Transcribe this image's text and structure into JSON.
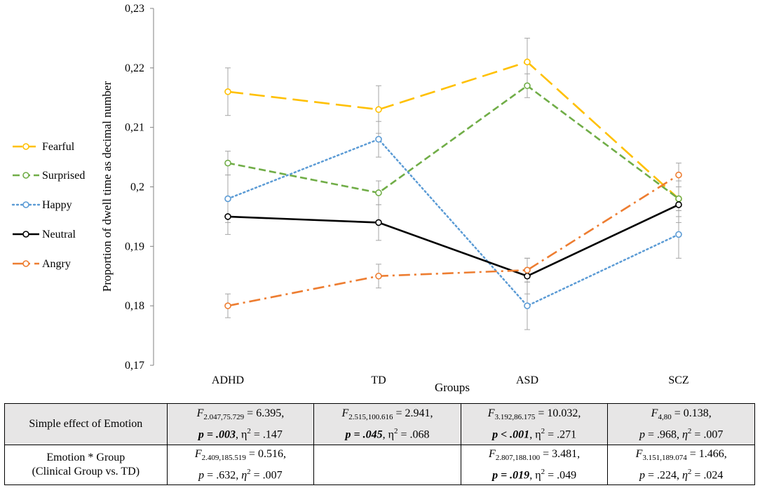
{
  "chart_data": {
    "type": "line",
    "xlabel": "Groups",
    "ylabel": "Proportion of dwell time as decimal number",
    "categories": [
      "ADHD",
      "TD",
      "ASD",
      "SCZ"
    ],
    "ylim": [
      0.17,
      0.23
    ],
    "yticks": [
      "0,17",
      "0,18",
      "0,19",
      "0,2",
      "0,21",
      "0,22",
      "0,23"
    ],
    "ytick_values": [
      0.17,
      0.18,
      0.19,
      0.2,
      0.21,
      0.22,
      0.23
    ],
    "legend_position": "left",
    "series": [
      {
        "name": "Fearful",
        "color": "#FFC000",
        "dash": "long-dash",
        "values": [
          0.216,
          0.213,
          0.221,
          0.198
        ],
        "errors": [
          0.004,
          0.004,
          0.004,
          0.003
        ]
      },
      {
        "name": "Surprised",
        "color": "#70AD47",
        "dash": "dash",
        "values": [
          0.204,
          0.199,
          0.217,
          0.198
        ],
        "errors": [
          0.002,
          0.002,
          0.002,
          0.002
        ]
      },
      {
        "name": "Happy",
        "color": "#5B9BD5",
        "dash": "dot",
        "values": [
          0.198,
          0.208,
          0.18,
          0.192
        ],
        "errors": [
          0.004,
          0.003,
          0.004,
          0.004
        ]
      },
      {
        "name": "Neutral",
        "color": "#000000",
        "dash": "solid",
        "values": [
          0.195,
          0.194,
          0.185,
          0.197
        ],
        "errors": [
          0.003,
          0.003,
          0.003,
          0.003
        ]
      },
      {
        "name": "Angry",
        "color": "#ED7D31",
        "dash": "dash-dot",
        "values": [
          0.18,
          0.185,
          0.186,
          0.202
        ],
        "errors": [
          0.002,
          0.002,
          0.002,
          0.002
        ]
      }
    ]
  },
  "table": {
    "row1": {
      "label": "Simple effect of Emotion",
      "cells": [
        {
          "f": "F",
          "df": "2.047,75.729",
          "fval": " = 6.395,",
          "p": "p = .003",
          "eta": ", η",
          "eta_sup": "2",
          "eta_val": " = .147"
        },
        {
          "f": "F",
          "df": "2.515,100.616",
          "fval": " = 2.941,",
          "p": "p = .045",
          "eta": ", η",
          "eta_sup": "2",
          "eta_val": " = .068"
        },
        {
          "f": "F",
          "df": "3.192,86.175",
          "fval": " = 10.032,",
          "p": "p < .001",
          "eta": ", η",
          "eta_sup": "2",
          "eta_val": " = .271"
        },
        {
          "f": "F",
          "df": "4,80",
          "fval": " = 0.138,",
          "p": "p",
          "p_rest": " = .968, ",
          "eta": "η",
          "eta_sup": "2",
          "eta_val": " = .007"
        }
      ]
    },
    "row2": {
      "label_line1": "Emotion * Group",
      "label_line2": "(Clinical Group vs. TD)",
      "cells": [
        {
          "f": "F",
          "df": "2.409,185.519",
          "fval": " = 0.516,",
          "p": "p",
          "p_rest": " = .632, ",
          "eta": "η",
          "eta_sup": "2",
          "eta_val": "  = .007"
        },
        {
          "empty": ""
        },
        {
          "f": "F",
          "df": "2.807,188.100",
          "fval": " = 3.481,",
          "p": "p = .019",
          "eta": ", η",
          "eta_sup": "2",
          "eta_val": " = .049"
        },
        {
          "f": "F",
          "df": "3.151,189.074",
          "fval": " = 1.466,",
          "p": "p",
          "p_rest": " = .224, ",
          "eta": "η",
          "eta_sup": "2",
          "eta_val": " = .024"
        }
      ]
    }
  }
}
